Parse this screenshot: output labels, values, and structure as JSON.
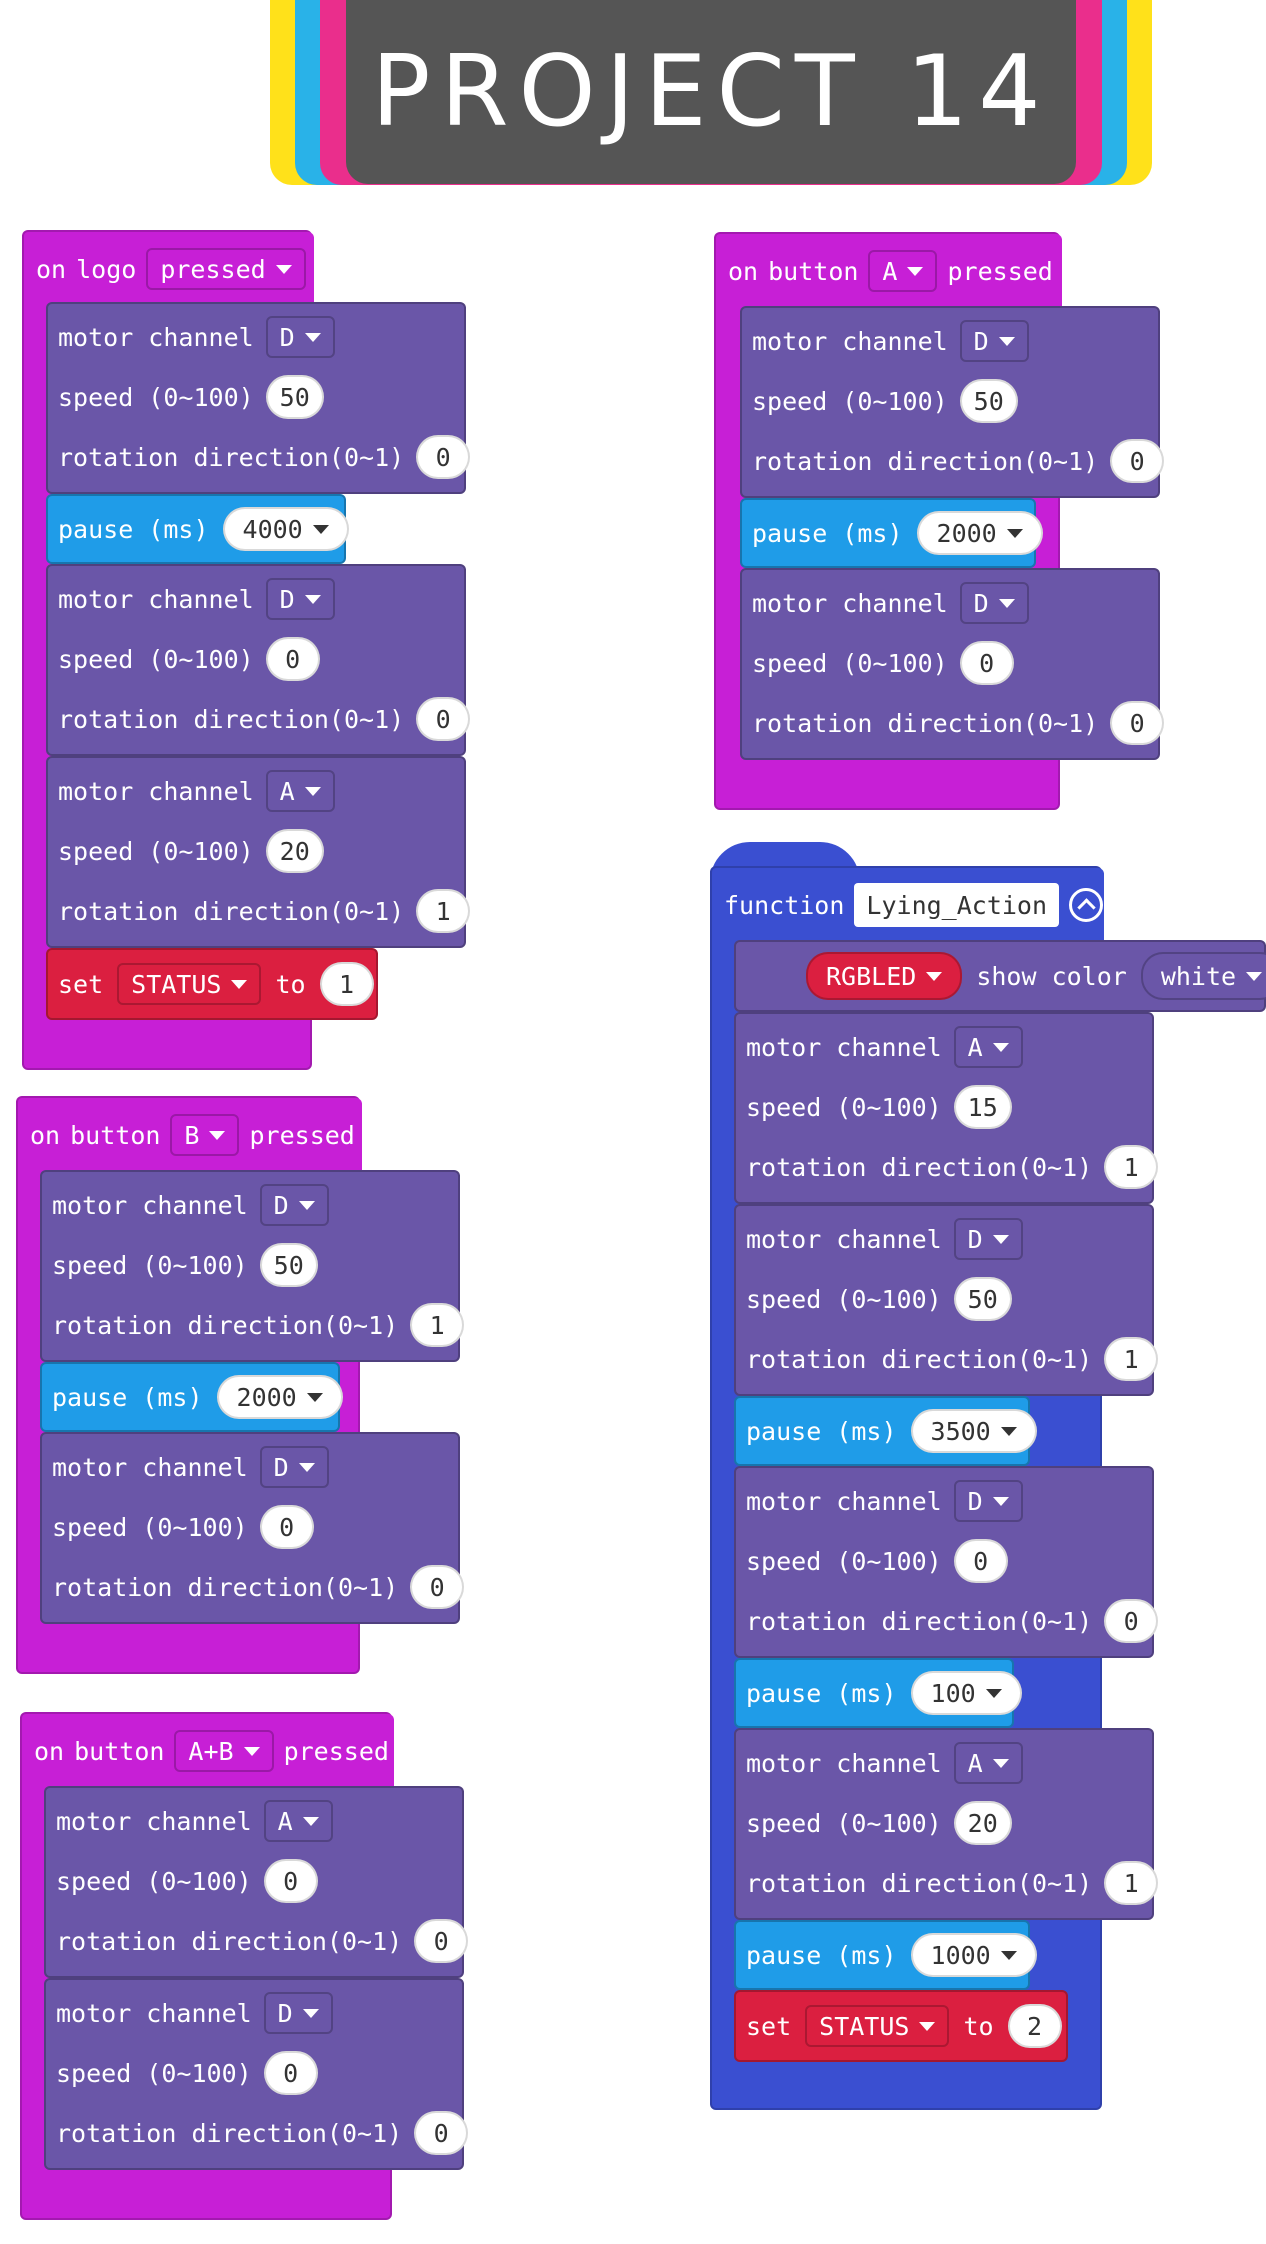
{
  "header": {
    "title": "PROJECT 14",
    "colors": {
      "yellow": "#ffe11a",
      "cyan": "#29b2e8",
      "pink": "#ea2e8c",
      "gray": "#555555"
    }
  },
  "labels": {
    "on": "on",
    "logo": "logo",
    "button": "button",
    "pressed": "pressed",
    "motor_channel": "motor channel",
    "speed": "speed (0~100)",
    "rotation": "rotation direction(0~1)",
    "pause": "pause (ms)",
    "set": "set",
    "to": "to",
    "function": "function",
    "show_color": "show color"
  },
  "blocks": {
    "logo": {
      "event_value": "pressed",
      "motor1": {
        "channel": "D",
        "speed": "50",
        "dir": "0"
      },
      "pause1": "4000",
      "motor2": {
        "channel": "D",
        "speed": "0",
        "dir": "0"
      },
      "motor3": {
        "channel": "A",
        "speed": "20",
        "dir": "1"
      },
      "set": {
        "var": "STATUS",
        "value": "1"
      }
    },
    "button_a": {
      "button": "A",
      "motor1": {
        "channel": "D",
        "speed": "50",
        "dir": "0"
      },
      "pause1": "2000",
      "motor2": {
        "channel": "D",
        "speed": "0",
        "dir": "0"
      }
    },
    "button_b": {
      "button": "B",
      "motor1": {
        "channel": "D",
        "speed": "50",
        "dir": "1"
      },
      "pause1": "2000",
      "motor2": {
        "channel": "D",
        "speed": "0",
        "dir": "0"
      }
    },
    "button_ab": {
      "button": "A+B",
      "motor1": {
        "channel": "A",
        "speed": "0",
        "dir": "0"
      },
      "motor2": {
        "channel": "D",
        "speed": "0",
        "dir": "0"
      }
    },
    "function": {
      "name": "Lying_Action",
      "rgb": {
        "led": "RGBLED",
        "color": "white"
      },
      "motor1": {
        "channel": "A",
        "speed": "15",
        "dir": "1"
      },
      "motor2": {
        "channel": "D",
        "speed": "50",
        "dir": "1"
      },
      "pause1": "3500",
      "motor3": {
        "channel": "D",
        "speed": "0",
        "dir": "0"
      },
      "pause2": "100",
      "motor4": {
        "channel": "A",
        "speed": "20",
        "dir": "1"
      },
      "pause3": "1000",
      "set": {
        "var": "STATUS",
        "value": "2"
      }
    }
  },
  "colors": {
    "event": "#c71fd6",
    "motor": "#6a56a8",
    "pause": "#1f9ce8",
    "set": "#db1f40",
    "function": "#3a4fd1"
  }
}
